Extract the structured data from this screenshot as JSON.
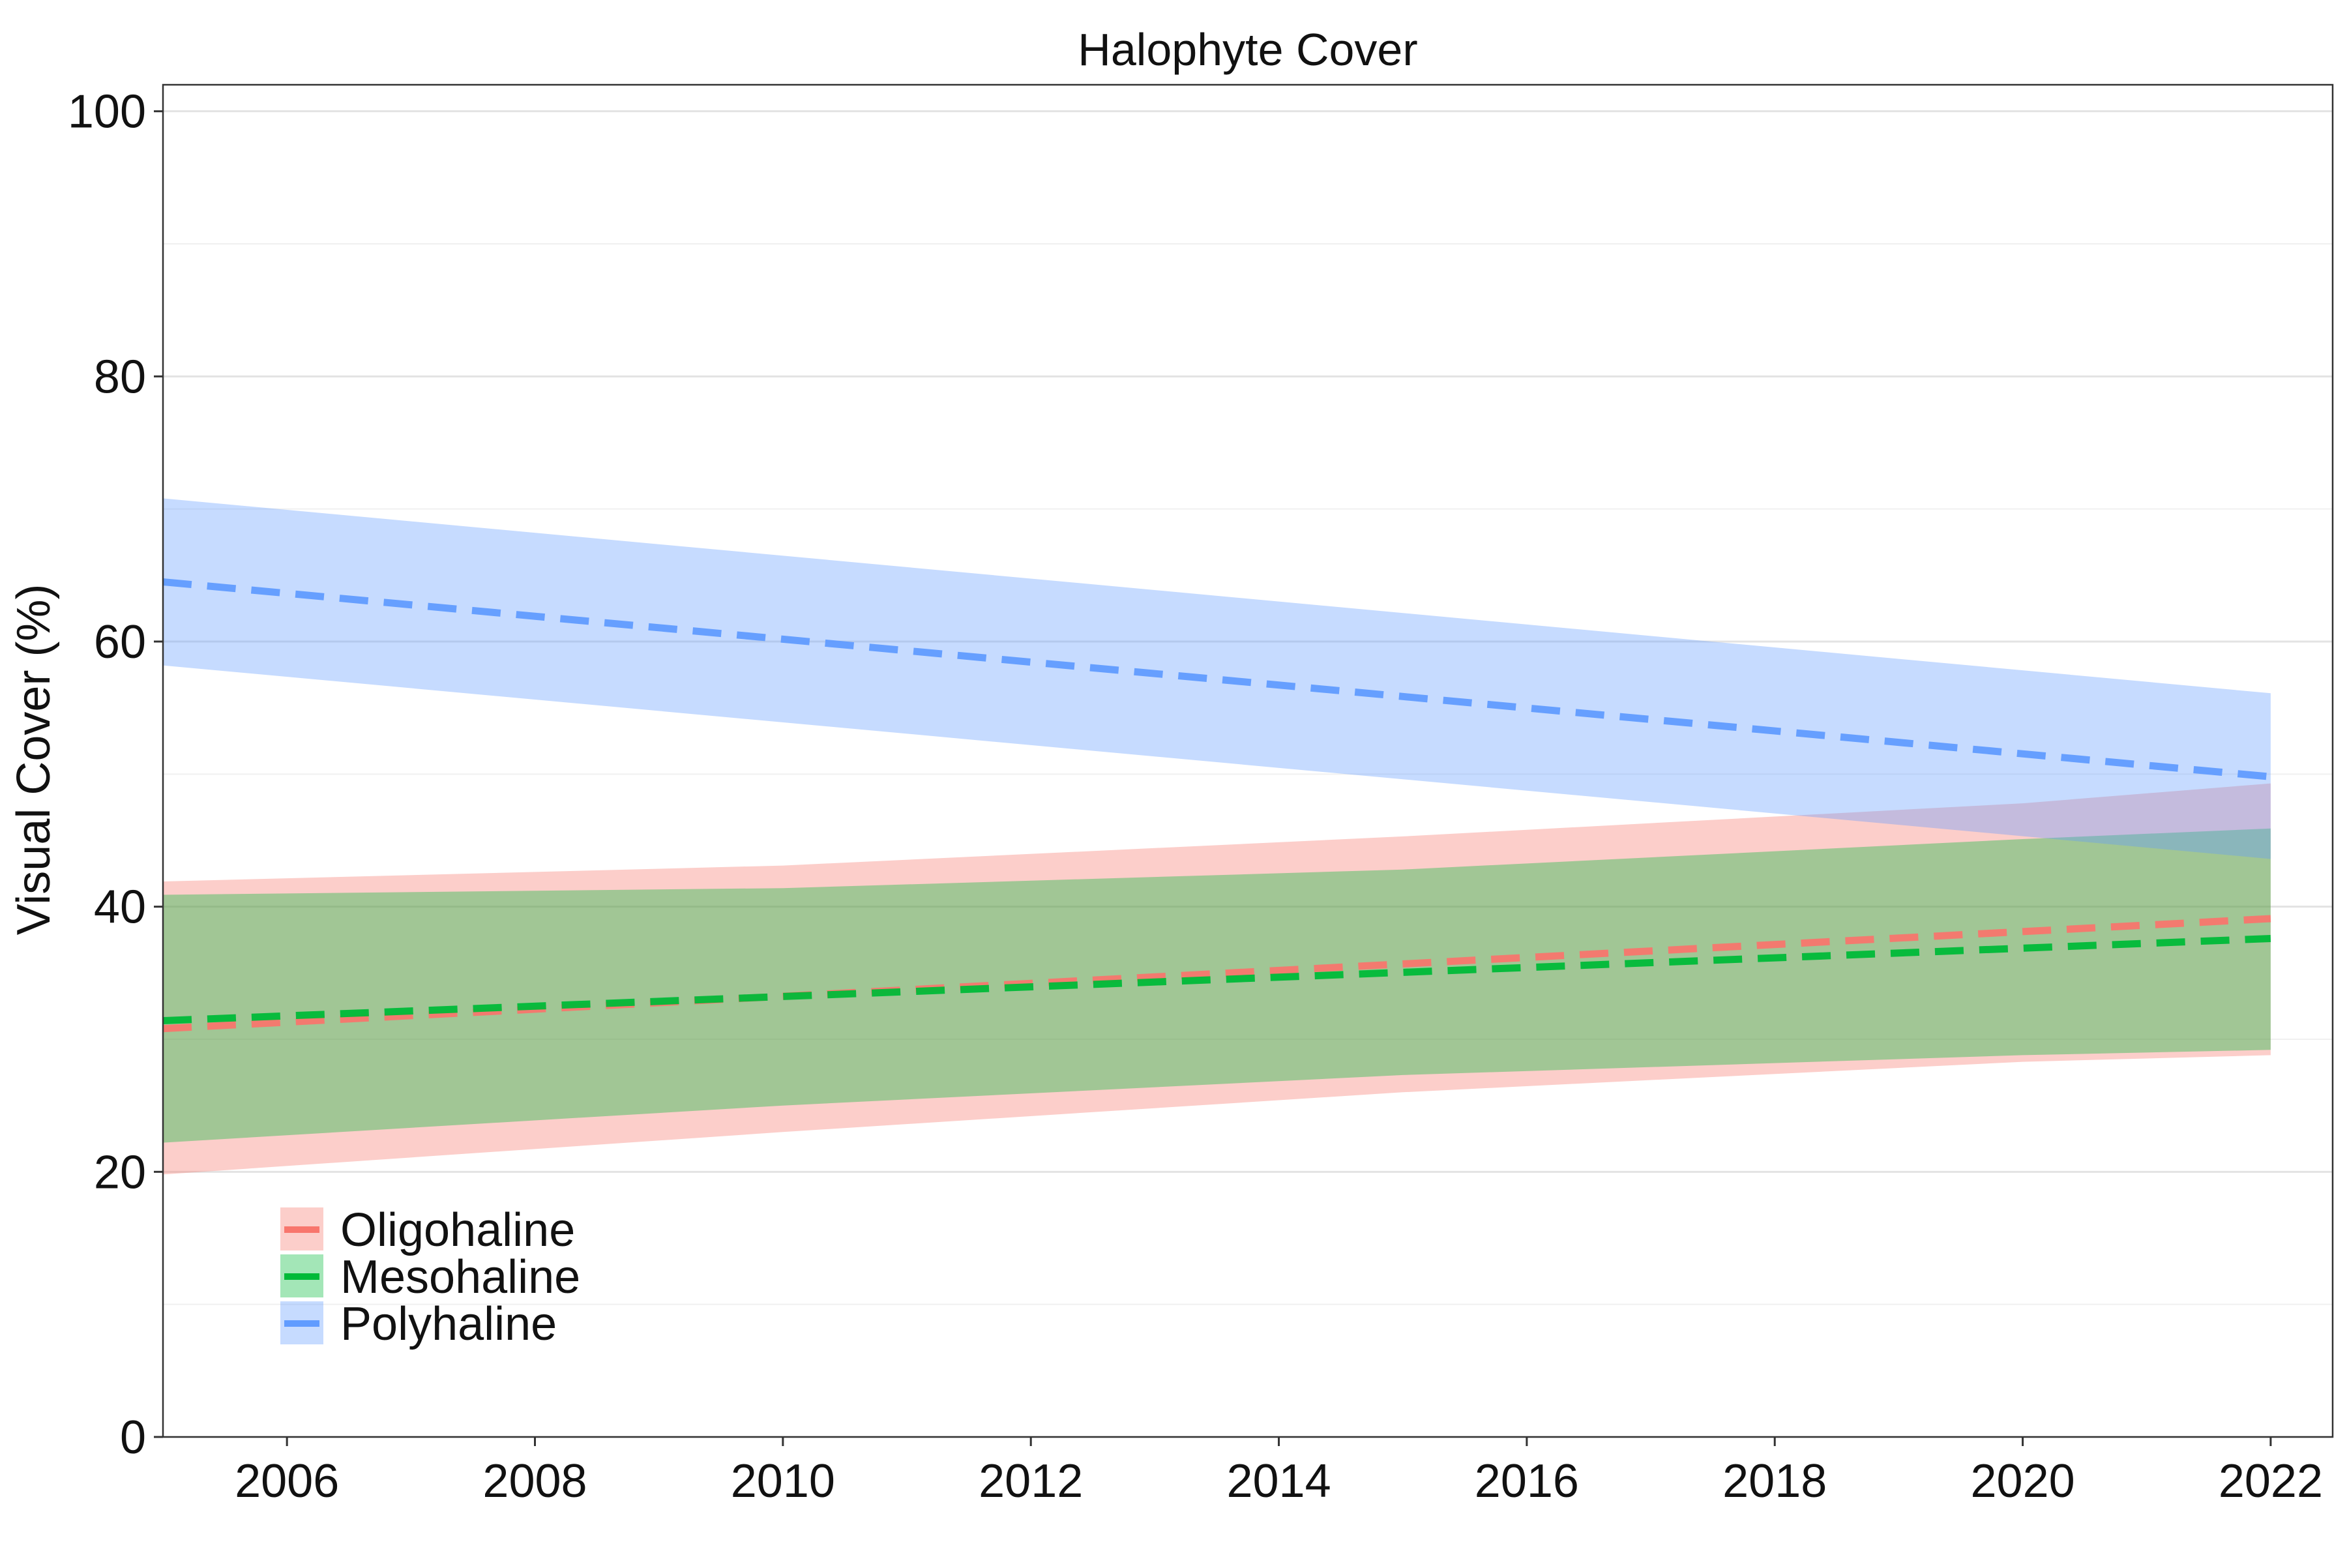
{
  "chart_data": {
    "type": "line",
    "title": "Halophyte Cover",
    "xlabel": "",
    "ylabel": "Visual Cover (%)",
    "xlim": [
      2005,
      2022.5
    ],
    "ylim": [
      0,
      102
    ],
    "x_ticks": [
      2006,
      2008,
      2010,
      2012,
      2014,
      2016,
      2018,
      2020,
      2022
    ],
    "y_ticks": [
      0,
      20,
      40,
      60,
      80,
      100
    ],
    "y_minor_grid": [
      10,
      30,
      50,
      70,
      90
    ],
    "grid": "horizontal",
    "legend_position": "bottom-left",
    "series": [
      {
        "name": "Oligohaline",
        "color": "#F8766D",
        "line_style": "dashed",
        "x": [
          2005,
          2022
        ],
        "y": [
          30.8,
          39.1
        ],
        "ribbon": {
          "x": [
            2005,
            2010,
            2015,
            2020,
            2022
          ],
          "lower": [
            19.8,
            23.0,
            26.0,
            28.3,
            28.8
          ],
          "upper": [
            41.9,
            43.1,
            45.3,
            47.8,
            49.3
          ]
        }
      },
      {
        "name": "Mesohaline",
        "color": "#00BA38",
        "line_style": "dashed",
        "x": [
          2005,
          2022
        ],
        "y": [
          31.4,
          37.6
        ],
        "ribbon": {
          "x": [
            2005,
            2010,
            2015,
            2020,
            2022
          ],
          "lower": [
            22.2,
            25.0,
            27.3,
            28.8,
            29.2
          ],
          "upper": [
            40.9,
            41.4,
            42.8,
            45.1,
            45.9
          ]
        }
      },
      {
        "name": "Polyhaline",
        "color": "#619CFF",
        "line_style": "dashed",
        "x": [
          2005,
          2022
        ],
        "y": [
          64.5,
          49.8
        ],
        "ribbon": {
          "x": [
            2005,
            2022
          ],
          "lower": [
            58.2,
            43.6
          ],
          "upper": [
            70.8,
            56.1
          ]
        }
      }
    ]
  }
}
